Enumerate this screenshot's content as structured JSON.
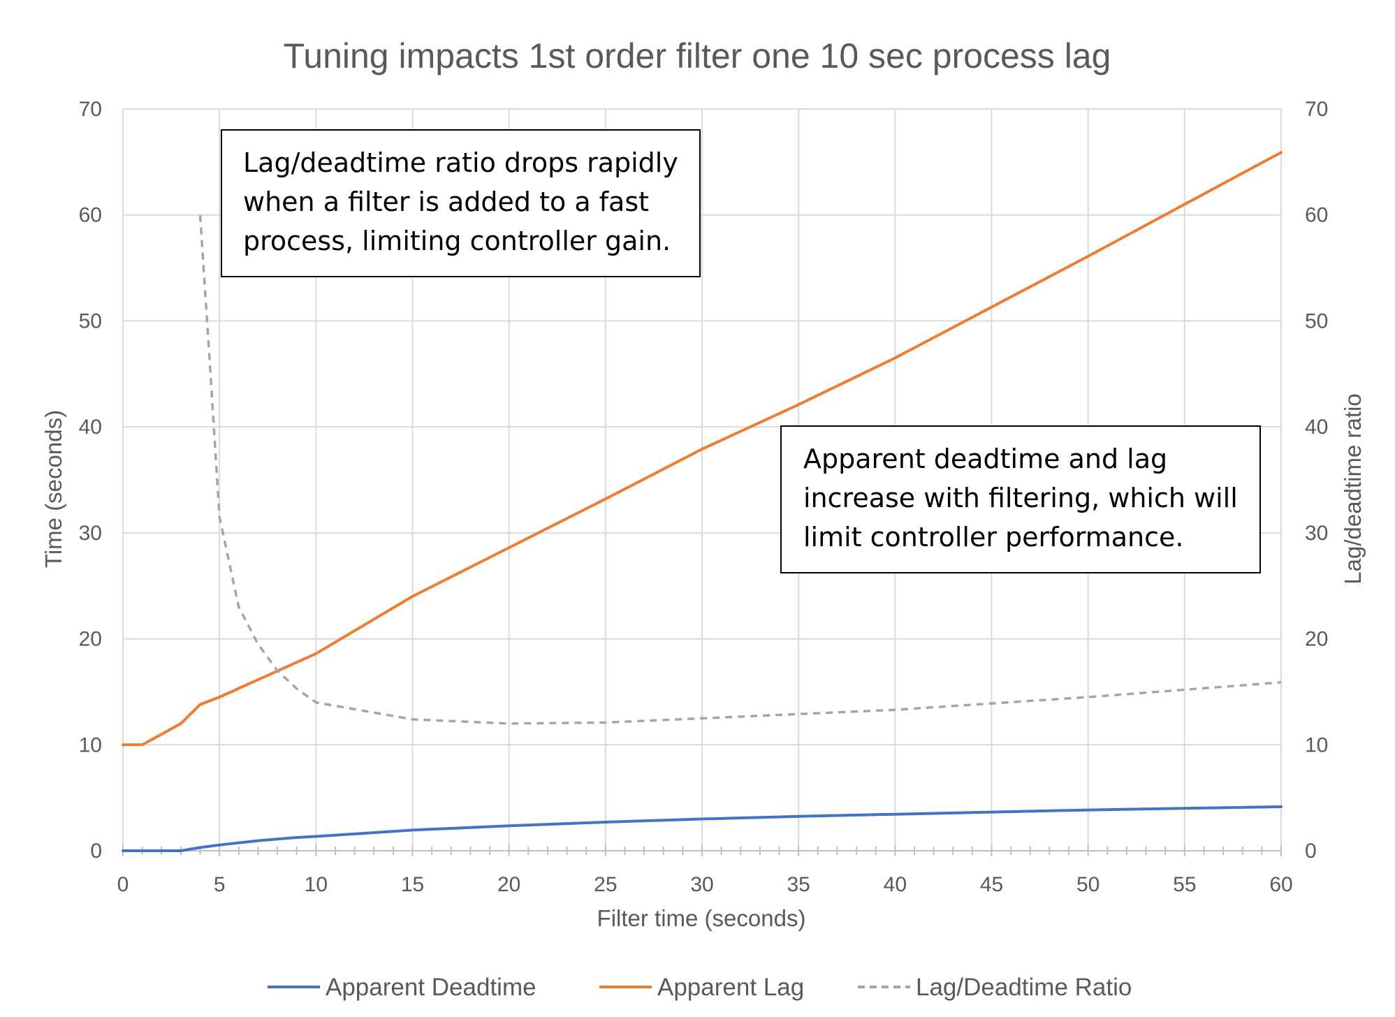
{
  "chart_data": {
    "type": "line",
    "title": "Tuning impacts 1st order filter one 10 sec process lag",
    "xlabel": "Filter time (seconds)",
    "ylabel": "Time (seconds)",
    "y2label": "Lag/deadtime ratio",
    "xlim": [
      0,
      60
    ],
    "ylim": [
      0,
      70
    ],
    "y2lim": [
      0,
      70
    ],
    "x_ticks": [
      0,
      5,
      10,
      15,
      20,
      25,
      30,
      35,
      40,
      45,
      50,
      55,
      60
    ],
    "y_ticks": [
      0,
      10,
      20,
      30,
      40,
      50,
      60,
      70
    ],
    "y2_ticks": [
      0,
      10,
      20,
      30,
      40,
      50,
      60,
      70
    ],
    "grid": true,
    "legend_position": "bottom",
    "series": [
      {
        "name": "Apparent Deadtime",
        "axis": "left",
        "color": "#4472c4",
        "style": "solid",
        "x": [
          0,
          1,
          2,
          3,
          4,
          5,
          6,
          7,
          8,
          9,
          10,
          15,
          20,
          25,
          30,
          35,
          40,
          45,
          50,
          55,
          60
        ],
        "values": [
          0,
          0,
          0,
          0,
          0.3,
          0.55,
          0.75,
          0.95,
          1.1,
          1.25,
          1.35,
          1.95,
          2.35,
          2.7,
          3.0,
          3.25,
          3.45,
          3.65,
          3.85,
          4.0,
          4.15
        ]
      },
      {
        "name": "Apparent Lag",
        "axis": "left",
        "color": "#ed7d31",
        "style": "solid",
        "x": [
          0,
          1,
          2,
          3,
          4,
          5,
          10,
          15,
          20,
          25,
          30,
          35,
          40,
          45,
          50,
          55,
          60
        ],
        "values": [
          10,
          10,
          11,
          12,
          13.8,
          14.5,
          18.6,
          24,
          28.6,
          33.2,
          37.9,
          42.1,
          46.5,
          51.3,
          56.1,
          61,
          65.9
        ]
      },
      {
        "name": "Lag/Deadtime Ratio",
        "axis": "right",
        "color": "#a5a5a5",
        "style": "dashed",
        "x": [
          4,
          4.5,
          5,
          6,
          7,
          8,
          9,
          10,
          15,
          20,
          25,
          30,
          35,
          40,
          45,
          50,
          55,
          60
        ],
        "values": [
          60,
          46,
          31.5,
          23,
          19.5,
          17,
          15.3,
          14,
          12.4,
          12,
          12.1,
          12.5,
          12.9,
          13.3,
          13.9,
          14.5,
          15.2,
          15.9
        ]
      }
    ],
    "annotations": [
      {
        "position": "top-left",
        "lines": [
          "Lag/deadtime ratio drops rapidly",
          "when a filter is added to a fast",
          "process, limiting controller gain."
        ]
      },
      {
        "position": "center-right",
        "lines": [
          "Apparent deadtime and lag",
          "increase with filtering, which will",
          "limit controller performance."
        ]
      }
    ]
  }
}
